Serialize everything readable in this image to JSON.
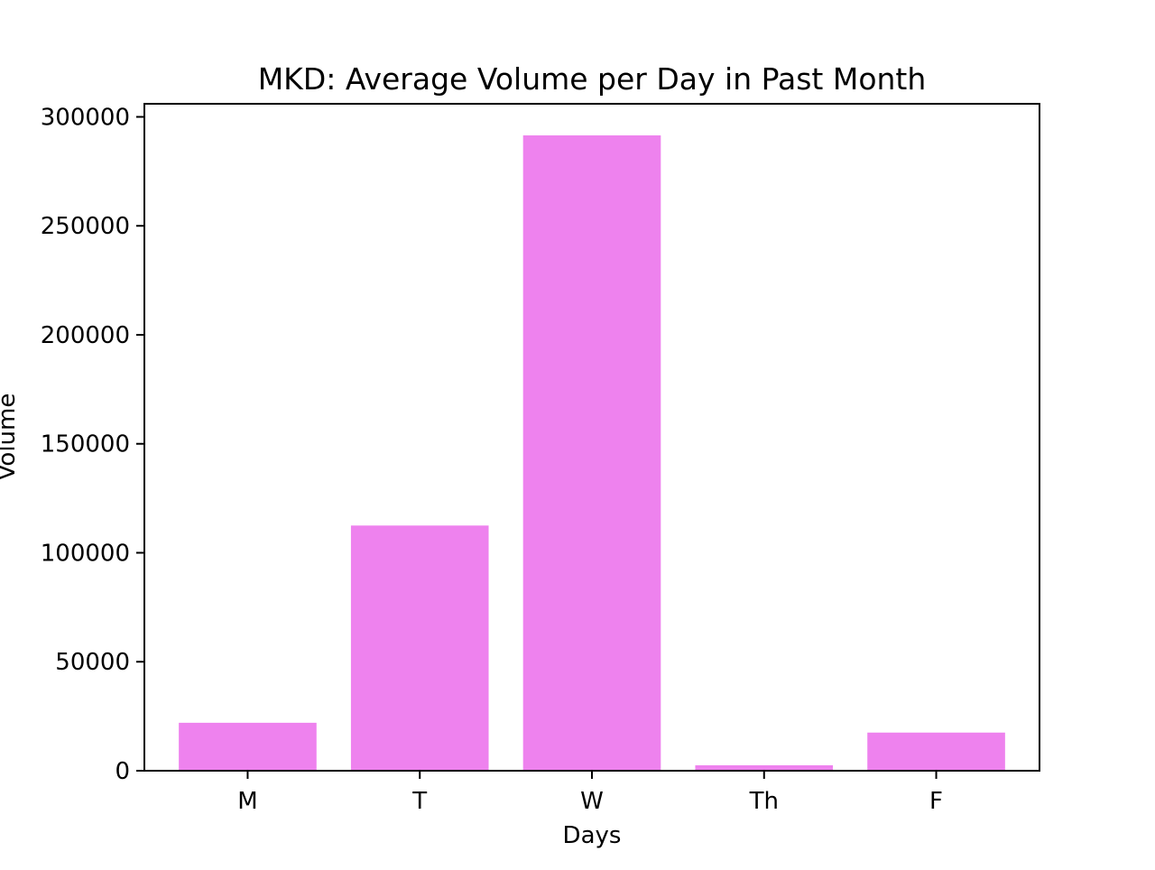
{
  "chart_data": {
    "type": "bar",
    "title": "MKD: Average Volume per Day in Past Month",
    "xlabel": "Days",
    "ylabel": "Volume",
    "categories": [
      "M",
      "T",
      "W",
      "Th",
      "F"
    ],
    "values": [
      22000,
      112500,
      291500,
      2500,
      17500
    ],
    "ylim": [
      0,
      306000
    ],
    "yticks": [
      0,
      50000,
      100000,
      150000,
      200000,
      250000,
      300000
    ],
    "ytick_labels": [
      "0",
      "50000",
      "100000",
      "150000",
      "200000",
      "250000",
      "300000"
    ],
    "bar_color": "#ee82ee",
    "grid": false,
    "legend": "none"
  }
}
